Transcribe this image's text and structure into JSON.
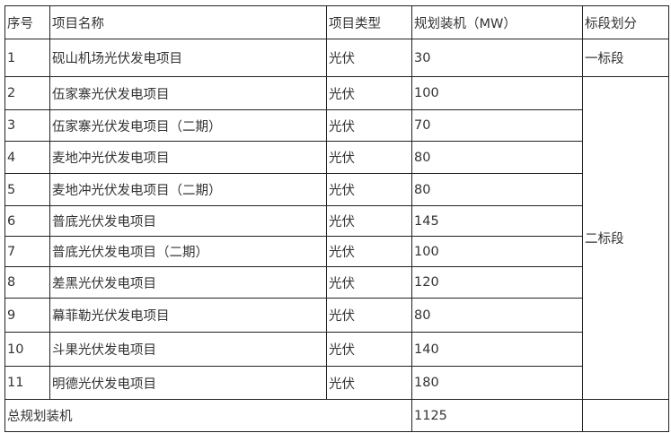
{
  "headers": [
    "序号",
    "项目名称",
    "项目类型",
    "规划装机（MW）",
    "标段划分"
  ],
  "rows": [
    {
      "no": "1",
      "name": "砚山机场光伏发电项目",
      "type": "光伏",
      "mw": "30"
    },
    {
      "no": "2",
      "name": "伍家寨光伏发电项目",
      "type": "光伏",
      "mw": "100"
    },
    {
      "no": "3",
      "name": "伍家寨光伏发电项目（二期）",
      "type": "光伏",
      "mw": "70"
    },
    {
      "no": "4",
      "name": "麦地冲光伏发电项目",
      "type": "光伏",
      "mw": "80"
    },
    {
      "no": "5",
      "name": "麦地冲光伏发电项目（二期）",
      "type": "光伏",
      "mw": "80"
    },
    {
      "no": "6",
      "name": "普底光伏发电项目",
      "type": "光伏",
      "mw": "145"
    },
    {
      "no": "7",
      "name": "普底光伏发电项目（二期）",
      "type": "光伏",
      "mw": "100"
    },
    {
      "no": "8",
      "name": "差黑光伏发电项目",
      "type": "光伏",
      "mw": "120"
    },
    {
      "no": "9",
      "name": "幕菲勒光伏发电项目",
      "type": "光伏",
      "mw": "80"
    },
    {
      "no": "10",
      "name": "斗果光伏发电项目",
      "type": "光伏",
      "mw": "140"
    },
    {
      "no": "11",
      "name": "明德光伏发电项目",
      "type": "光伏",
      "mw": "180"
    }
  ],
  "sections": {
    "first": "一标段",
    "second": "二标段"
  },
  "total": {
    "label": "总规划装机",
    "mw": "1125"
  }
}
